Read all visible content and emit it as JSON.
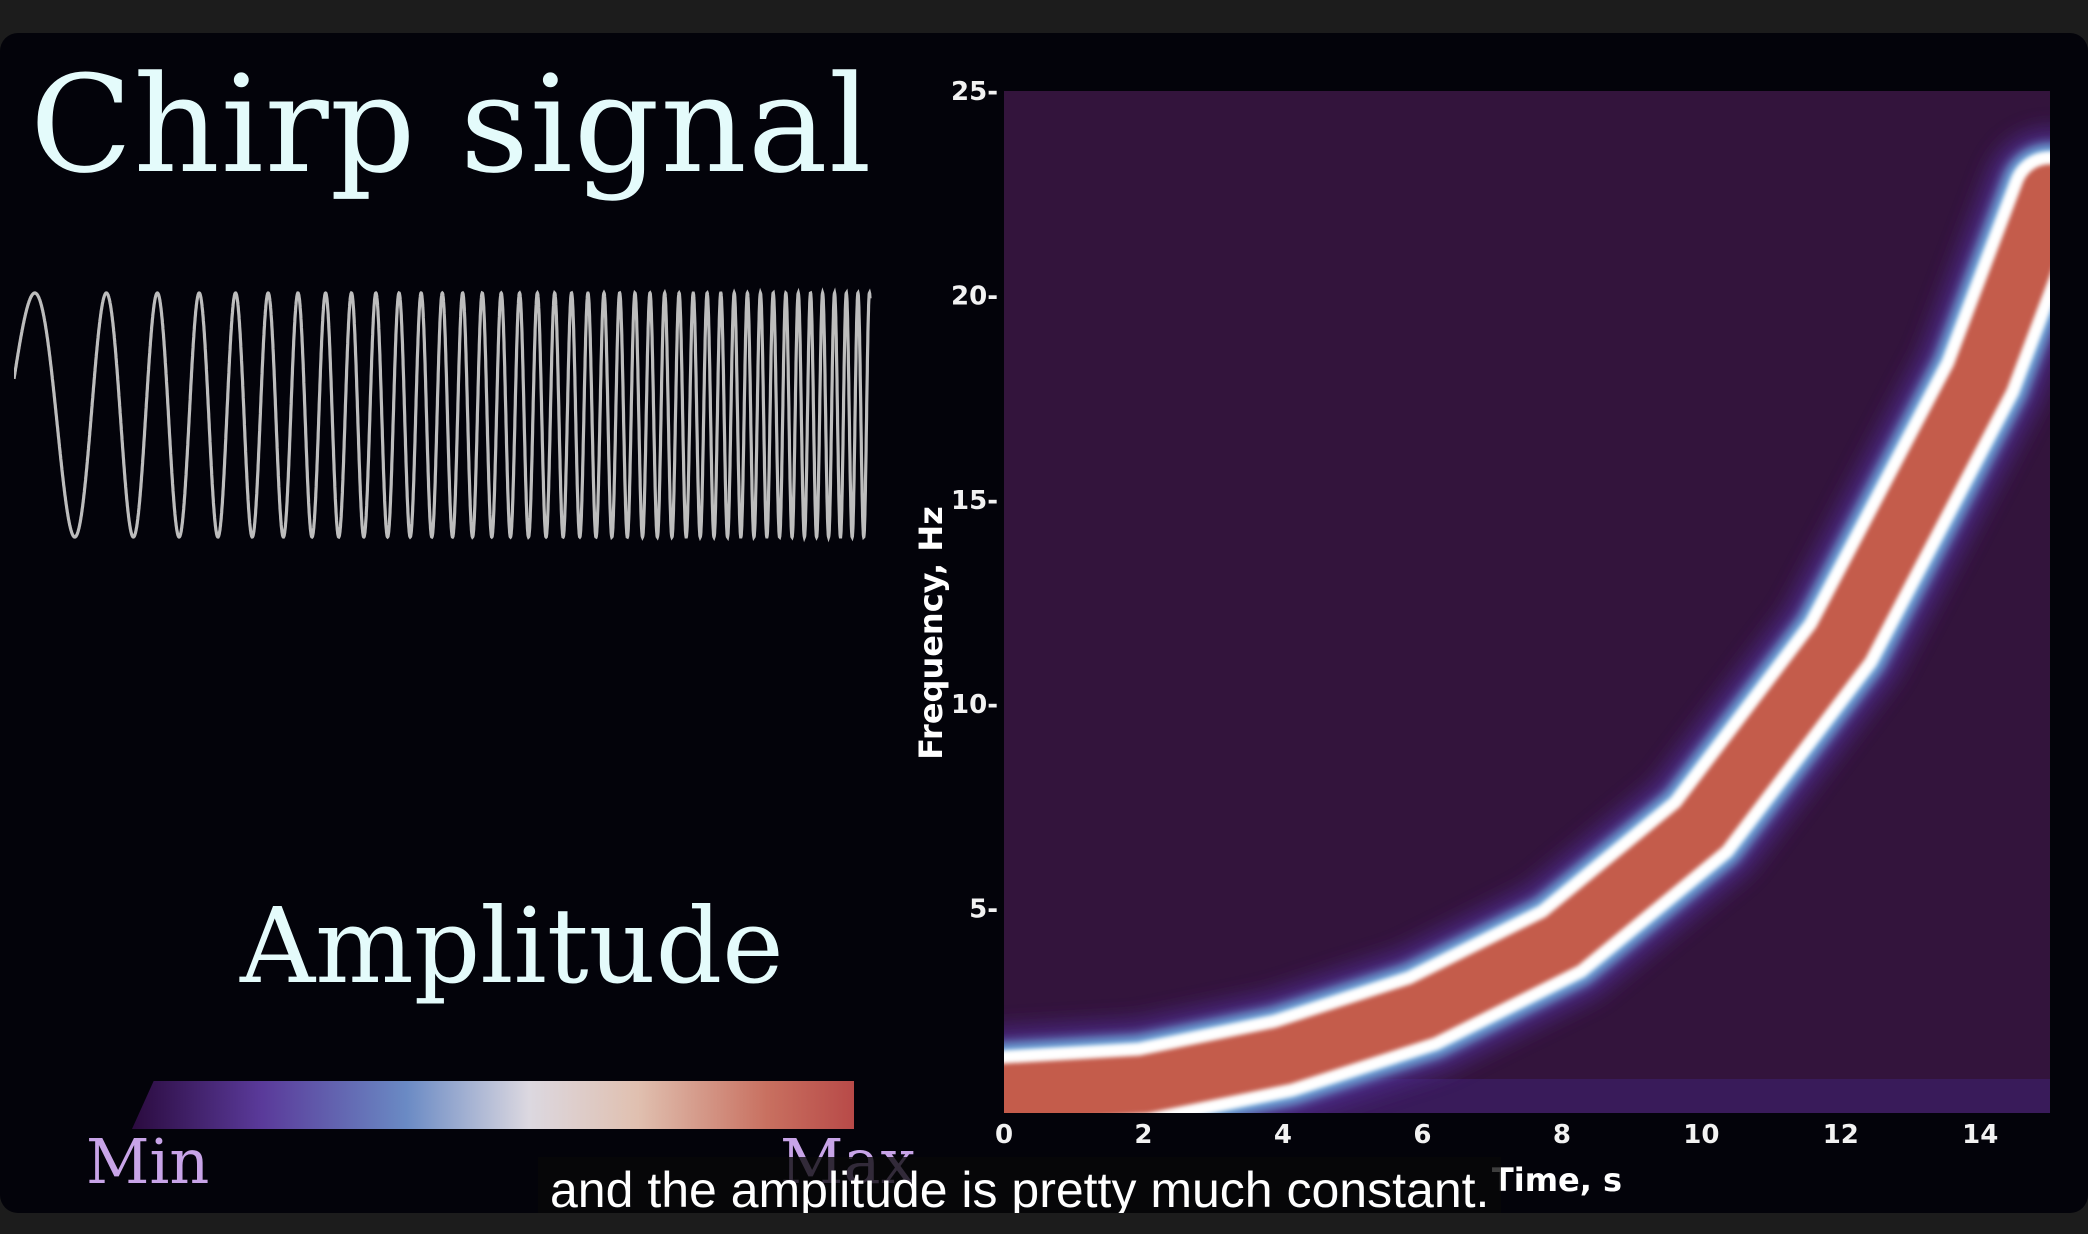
{
  "header": {
    "title": "Chirp signal"
  },
  "legend": {
    "title": "Amplitude",
    "min_label": "Min",
    "max_label": "Max"
  },
  "caption": {
    "text": "and the amplitude is pretty much constant."
  },
  "colors": {
    "background": "#03030a",
    "plot_background": "#33143c",
    "title_color": "#e4fbfb",
    "legend_label_color": "#c8a4e8",
    "band_inner": "#c45c4c",
    "band_edge": "#ffffff",
    "band_glow": "#6da4d8"
  },
  "chart_data": [
    {
      "type": "line",
      "title": "",
      "xlabel": "",
      "ylabel": "",
      "series": [
        {
          "values_description_free": true,
          "waveform": "chirp",
          "amplitude": 1,
          "frequency_start": 0.5,
          "frequency_rate": 1.25
        }
      ]
    },
    {
      "type": "heatmap",
      "title": "",
      "xlabel": "Time, s",
      "ylabel": "Frequency, Hz",
      "xlim": [
        0,
        15
      ],
      "ylim": [
        0,
        25
      ],
      "xticks": [
        0,
        2,
        4,
        6,
        8,
        10,
        12,
        14
      ],
      "yticks": [
        5,
        10,
        15,
        20,
        25
      ],
      "xtick_labels": [
        "0",
        "2",
        "4",
        "6",
        "8",
        "10",
        "12",
        "14"
      ],
      "ytick_labels": [
        "5-",
        "10-",
        "15-",
        "20-",
        "25-"
      ],
      "ridge": {
        "time": [
          0,
          2,
          4,
          6,
          8,
          10,
          12,
          14,
          15
        ],
        "frequency": [
          0.5,
          0.7,
          1.4,
          2.5,
          4.2,
          7.0,
          11.5,
          18.0,
          22.5
        ]
      },
      "colorscale": [
        "#33143c",
        "#5a3a9a",
        "#6da4d8",
        "#ffffff",
        "#c45c4c"
      ]
    }
  ]
}
